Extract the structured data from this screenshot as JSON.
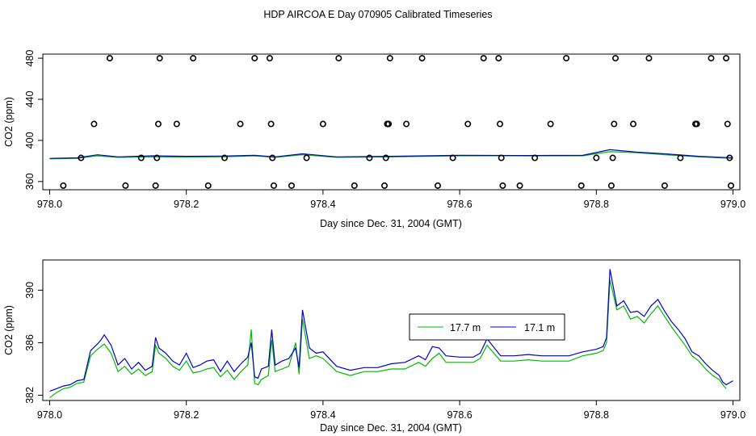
{
  "title": "HDP AIRCOA E  Day 070905  Calibrated Timeseries",
  "chart_data": [
    {
      "type": "scatter+line",
      "xlabel": "Day since Dec. 31, 2004 (GMT)",
      "ylabel": "CO2 (ppm)",
      "xlim": [
        977.99,
        979.01
      ],
      "ylim": [
        352,
        484
      ],
      "x_ticks": [
        978.0,
        978.2,
        978.4,
        978.6,
        978.8,
        979.0
      ],
      "x_tick_labels": [
        "978.0",
        "978.2",
        "978.4",
        "978.6",
        "978.8",
        "979.0"
      ],
      "y_ticks": [
        360,
        400,
        440,
        480
      ],
      "y_tick_labels": [
        "360",
        "400",
        "440",
        "480"
      ],
      "colors": {
        "green": "#00bb00",
        "blue": "#0000cc",
        "points": "#000000"
      },
      "points": [
        {
          "x": 978.02,
          "y": 356
        },
        {
          "x": 978.046,
          "y": 383
        },
        {
          "x": 978.065,
          "y": 416
        },
        {
          "x": 978.088,
          "y": 480
        },
        {
          "x": 978.111,
          "y": 356
        },
        {
          "x": 978.134,
          "y": 383
        },
        {
          "x": 978.155,
          "y": 356
        },
        {
          "x": 978.157,
          "y": 383
        },
        {
          "x": 978.159,
          "y": 416
        },
        {
          "x": 978.161,
          "y": 480
        },
        {
          "x": 978.186,
          "y": 416
        },
        {
          "x": 978.21,
          "y": 480
        },
        {
          "x": 978.232,
          "y": 356
        },
        {
          "x": 978.256,
          "y": 383
        },
        {
          "x": 978.279,
          "y": 416
        },
        {
          "x": 978.3,
          "y": 480
        },
        {
          "x": 978.322,
          "y": 480
        },
        {
          "x": 978.324,
          "y": 416
        },
        {
          "x": 978.326,
          "y": 383
        },
        {
          "x": 978.328,
          "y": 356
        },
        {
          "x": 978.354,
          "y": 356
        },
        {
          "x": 978.376,
          "y": 383
        },
        {
          "x": 978.4,
          "y": 416
        },
        {
          "x": 978.423,
          "y": 480
        },
        {
          "x": 978.446,
          "y": 356
        },
        {
          "x": 978.468,
          "y": 383
        },
        {
          "x": 978.49,
          "y": 356
        },
        {
          "x": 978.492,
          "y": 383
        },
        {
          "x": 978.494,
          "y": 416
        },
        {
          "x": 978.496,
          "y": 416
        },
        {
          "x": 978.498,
          "y": 480
        },
        {
          "x": 978.522,
          "y": 416
        },
        {
          "x": 978.545,
          "y": 480
        },
        {
          "x": 978.568,
          "y": 356
        },
        {
          "x": 978.59,
          "y": 383
        },
        {
          "x": 978.612,
          "y": 416
        },
        {
          "x": 978.635,
          "y": 480
        },
        {
          "x": 978.657,
          "y": 480
        },
        {
          "x": 978.659,
          "y": 416
        },
        {
          "x": 978.661,
          "y": 383
        },
        {
          "x": 978.663,
          "y": 356
        },
        {
          "x": 978.688,
          "y": 356
        },
        {
          "x": 978.71,
          "y": 383
        },
        {
          "x": 978.733,
          "y": 416
        },
        {
          "x": 978.756,
          "y": 480
        },
        {
          "x": 978.778,
          "y": 356
        },
        {
          "x": 978.8,
          "y": 383
        },
        {
          "x": 978.822,
          "y": 356
        },
        {
          "x": 978.824,
          "y": 383
        },
        {
          "x": 978.826,
          "y": 416
        },
        {
          "x": 978.828,
          "y": 480
        },
        {
          "x": 978.854,
          "y": 416
        },
        {
          "x": 978.877,
          "y": 480
        },
        {
          "x": 978.9,
          "y": 356
        },
        {
          "x": 978.923,
          "y": 383
        },
        {
          "x": 978.945,
          "y": 416
        },
        {
          "x": 978.947,
          "y": 416
        },
        {
          "x": 978.968,
          "y": 480
        },
        {
          "x": 978.99,
          "y": 480
        },
        {
          "x": 978.992,
          "y": 416
        },
        {
          "x": 978.995,
          "y": 383
        },
        {
          "x": 978.997,
          "y": 356
        }
      ],
      "series": [
        {
          "color": "green",
          "x": [
            978.0,
            978.04,
            978.07,
            978.1,
            978.15,
            978.2,
            978.25,
            978.3,
            978.33,
            978.37,
            978.42,
            978.5,
            978.6,
            978.7,
            978.78,
            978.82,
            978.86,
            978.9,
            978.95,
            979.0
          ],
          "values": [
            382,
            382.5,
            385,
            383.5,
            384,
            383.8,
            384,
            385,
            383.5,
            386,
            383.5,
            384,
            385,
            385,
            385,
            389,
            388,
            386,
            384,
            382.5
          ]
        },
        {
          "color": "blue",
          "x": [
            978.0,
            978.04,
            978.07,
            978.1,
            978.15,
            978.2,
            978.25,
            978.3,
            978.33,
            978.37,
            978.42,
            978.5,
            978.6,
            978.7,
            978.78,
            978.82,
            978.86,
            978.9,
            978.95,
            979.0
          ],
          "values": [
            382.5,
            383,
            386,
            384,
            385,
            384.5,
            384.8,
            385.5,
            384,
            387,
            384,
            384.5,
            385.5,
            385.3,
            385.5,
            391,
            388.5,
            387,
            384.5,
            383
          ]
        }
      ]
    },
    {
      "type": "line",
      "xlabel": "Day since Dec. 31, 2004 (GMT)",
      "ylabel": "CO2 (ppm)",
      "xlim": [
        977.99,
        979.01
      ],
      "ylim": [
        381.6,
        392.3
      ],
      "x_ticks": [
        978.0,
        978.2,
        978.4,
        978.6,
        978.8,
        979.0
      ],
      "x_tick_labels": [
        "978.0",
        "978.2",
        "978.4",
        "978.6",
        "978.8",
        "979.0"
      ],
      "y_ticks": [
        382,
        386,
        390
      ],
      "y_tick_labels": [
        "382",
        "386",
        "390"
      ],
      "legend": {
        "position": "center-right",
        "entries": [
          "17.7 m",
          "17.1 m"
        ]
      },
      "series": [
        {
          "name": "17.7 m",
          "color": "#00bb00",
          "x": [
            978.0,
            978.01,
            978.02,
            978.03,
            978.04,
            978.05,
            978.06,
            978.07,
            978.075,
            978.08,
            978.09,
            978.1,
            978.11,
            978.12,
            978.13,
            978.14,
            978.15,
            978.155,
            978.16,
            978.17,
            978.18,
            978.19,
            978.2,
            978.21,
            978.22,
            978.23,
            978.24,
            978.25,
            978.26,
            978.27,
            978.28,
            978.29,
            978.295,
            978.3,
            978.305,
            978.31,
            978.32,
            978.325,
            978.33,
            978.34,
            978.35,
            978.36,
            978.365,
            978.37,
            978.38,
            978.39,
            978.4,
            978.42,
            978.44,
            978.46,
            978.48,
            978.5,
            978.52,
            978.54,
            978.55,
            978.56,
            978.57,
            978.58,
            978.6,
            978.62,
            978.63,
            978.64,
            978.66,
            978.68,
            978.7,
            978.72,
            978.74,
            978.76,
            978.78,
            978.8,
            978.81,
            978.815,
            978.82,
            978.83,
            978.84,
            978.85,
            978.86,
            978.87,
            978.88,
            978.89,
            978.9,
            978.91,
            978.92,
            978.93,
            978.94,
            978.95,
            978.96,
            978.97,
            978.98,
            978.985,
            978.99
          ],
          "values": [
            381.8,
            382.2,
            382.5,
            382.6,
            382.9,
            383.0,
            385.0,
            385.5,
            385.7,
            385.9,
            385.2,
            383.8,
            384.2,
            383.6,
            384.0,
            383.5,
            383.8,
            385.8,
            385.2,
            384.8,
            384.2,
            383.9,
            384.6,
            383.7,
            383.8,
            384.0,
            384.1,
            383.4,
            383.9,
            383.2,
            383.8,
            384.3,
            387.0,
            382.9,
            382.8,
            383.2,
            383.5,
            386.2,
            383.8,
            384.0,
            384.2,
            386.0,
            383.6,
            387.8,
            384.8,
            385.0,
            384.8,
            383.8,
            383.5,
            383.8,
            383.8,
            384.0,
            384.0,
            384.5,
            384.2,
            384.8,
            385.2,
            384.5,
            384.5,
            384.5,
            384.8,
            385.8,
            384.6,
            384.6,
            384.7,
            384.6,
            384.6,
            384.6,
            385.0,
            385.2,
            385.4,
            386.0,
            390.8,
            388.5,
            388.8,
            387.8,
            388.0,
            387.5,
            388.2,
            388.8,
            388.0,
            387.2,
            386.5,
            385.8,
            385.0,
            384.6,
            384.0,
            383.5,
            383.2,
            382.8,
            382.5
          ]
        },
        {
          "name": "17.1 m",
          "color": "#0000cc",
          "x": [
            978.0,
            978.01,
            978.02,
            978.03,
            978.04,
            978.05,
            978.06,
            978.07,
            978.075,
            978.08,
            978.09,
            978.1,
            978.11,
            978.12,
            978.13,
            978.14,
            978.15,
            978.155,
            978.16,
            978.17,
            978.18,
            978.19,
            978.2,
            978.21,
            978.22,
            978.23,
            978.24,
            978.25,
            978.26,
            978.27,
            978.28,
            978.29,
            978.295,
            978.3,
            978.305,
            978.31,
            978.32,
            978.325,
            978.33,
            978.34,
            978.35,
            978.36,
            978.365,
            978.37,
            978.38,
            978.39,
            978.4,
            978.42,
            978.44,
            978.46,
            978.48,
            978.5,
            978.52,
            978.54,
            978.55,
            978.56,
            978.57,
            978.58,
            978.6,
            978.62,
            978.63,
            978.64,
            978.66,
            978.68,
            978.7,
            978.72,
            978.74,
            978.76,
            978.78,
            978.8,
            978.81,
            978.815,
            978.82,
            978.83,
            978.84,
            978.85,
            978.86,
            978.87,
            978.88,
            978.89,
            978.9,
            978.91,
            978.92,
            978.93,
            978.94,
            978.95,
            978.96,
            978.97,
            978.98,
            978.985,
            978.99,
            979.0
          ],
          "values": [
            382.3,
            382.5,
            382.7,
            382.8,
            383.1,
            383.2,
            385.4,
            385.9,
            386.2,
            386.6,
            385.8,
            384.3,
            384.8,
            384.0,
            384.5,
            383.9,
            384.2,
            386.4,
            385.6,
            385.2,
            384.6,
            384.3,
            385.2,
            384.1,
            384.3,
            384.6,
            384.7,
            383.8,
            384.6,
            383.8,
            384.4,
            384.9,
            386.0,
            383.4,
            383.3,
            384.0,
            384.2,
            387.0,
            384.3,
            384.6,
            384.8,
            385.6,
            384.1,
            388.5,
            385.6,
            385.2,
            385.3,
            384.2,
            383.9,
            384.1,
            384.1,
            384.4,
            384.5,
            385.0,
            384.7,
            385.7,
            385.6,
            385.0,
            384.9,
            384.9,
            385.2,
            386.3,
            385.0,
            385.0,
            385.1,
            385.0,
            385.0,
            385.0,
            385.3,
            385.5,
            385.7,
            386.4,
            391.6,
            388.8,
            389.2,
            388.3,
            388.4,
            388.0,
            388.8,
            389.3,
            388.4,
            387.6,
            387.0,
            386.3,
            385.3,
            385.0,
            384.4,
            383.9,
            383.5,
            383.0,
            382.8,
            383.1
          ]
        }
      ]
    }
  ]
}
